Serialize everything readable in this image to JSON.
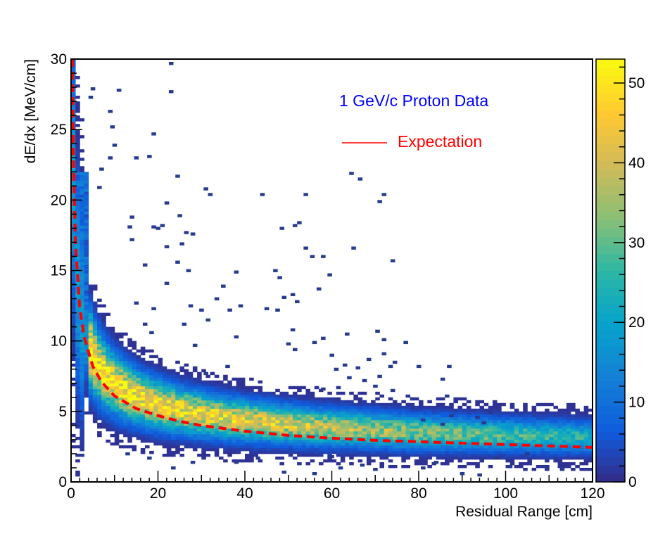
{
  "chart_data": {
    "type": "heatmap",
    "title": "",
    "xlabel": "Residual Range [cm]",
    "ylabel": "dE/dx [MeV/cm]",
    "xlim": [
      0,
      120
    ],
    "ylim": [
      0,
      30
    ],
    "x_ticks": [
      0,
      20,
      40,
      60,
      80,
      100,
      120
    ],
    "y_ticks": [
      0,
      5,
      10,
      15,
      20,
      25,
      30
    ],
    "colorbar": {
      "range": [
        0,
        53
      ],
      "ticks": [
        0,
        10,
        20,
        30,
        40,
        50
      ]
    },
    "annotations": [
      {
        "text": "1 GeV/c Proton Data",
        "color": "#0000ff"
      }
    ],
    "legend": [
      {
        "label": "Expectation",
        "color": "#ff0000",
        "style": "line"
      }
    ],
    "band": {
      "description": "dense population following dE/dx = 15.5 * R^-0.42 + 1.1",
      "a": 15.5,
      "b": -0.42,
      "c": 1.1,
      "peak_count": 53
    },
    "expectation_curve": {
      "color": "#ff0000",
      "style": "dashed",
      "x": [
        0.3,
        0.5,
        1,
        2,
        3,
        5,
        7,
        10,
        15,
        20,
        25,
        30,
        40,
        50,
        60,
        70,
        80,
        90,
        100,
        110,
        120
      ],
      "y": [
        30,
        23.5,
        17.0,
        12.4,
        10.3,
        8.2,
        7.1,
        6.1,
        5.2,
        4.7,
        4.3,
        4.0,
        3.6,
        3.3,
        3.1,
        2.95,
        2.85,
        2.75,
        2.65,
        2.55,
        2.45
      ]
    },
    "outliers": [
      [
        22.5,
        29.6
      ],
      [
        4.5,
        27.8
      ],
      [
        10.5,
        27.7
      ],
      [
        22.5,
        27.6
      ],
      [
        4.0,
        27.2
      ],
      [
        8.5,
        26.2
      ],
      [
        9.0,
        25.1
      ],
      [
        18.5,
        24.6
      ],
      [
        9.5,
        23.8
      ],
      [
        17.5,
        23.0
      ],
      [
        14.5,
        22.9
      ],
      [
        8.5,
        22.9
      ],
      [
        6.5,
        22.1
      ],
      [
        24.0,
        21.6
      ],
      [
        64.0,
        21.8
      ],
      [
        66.0,
        21.4
      ],
      [
        6.0,
        20.8
      ],
      [
        30.5,
        20.7
      ],
      [
        31.5,
        20.3
      ],
      [
        43.5,
        20.3
      ],
      [
        53.5,
        20.3
      ],
      [
        71.5,
        20.3
      ],
      [
        70.5,
        19.8
      ],
      [
        21.5,
        19.7
      ],
      [
        13.5,
        18.7
      ],
      [
        24.5,
        18.8
      ],
      [
        52.0,
        18.3
      ],
      [
        51.0,
        18.1
      ],
      [
        48.0,
        17.9
      ],
      [
        26.0,
        17.6
      ],
      [
        13.0,
        18.0
      ],
      [
        18.5,
        18.0
      ],
      [
        20.5,
        18.1
      ],
      [
        19.5,
        17.9
      ],
      [
        27.5,
        17.5
      ],
      [
        25.0,
        16.8
      ],
      [
        21.5,
        16.6
      ],
      [
        13.5,
        17.1
      ],
      [
        53.5,
        16.5
      ],
      [
        64.5,
        16.5
      ],
      [
        55.0,
        15.9
      ],
      [
        57.5,
        15.9
      ],
      [
        16.5,
        15.3
      ],
      [
        24.0,
        15.5
      ],
      [
        73.5,
        15.6
      ],
      [
        46.5,
        14.9
      ],
      [
        59.0,
        14.6
      ],
      [
        37.5,
        14.8
      ],
      [
        47.5,
        14.4
      ],
      [
        26.5,
        14.9
      ],
      [
        21.5,
        14.0
      ],
      [
        34.5,
        13.8
      ],
      [
        50.5,
        13.2
      ],
      [
        48.5,
        13.0
      ],
      [
        56.5,
        13.6
      ],
      [
        33.0,
        12.9
      ],
      [
        27.0,
        12.4
      ],
      [
        38.5,
        12.4
      ],
      [
        44.5,
        12.2
      ],
      [
        36.0,
        12.1
      ],
      [
        51.5,
        12.7
      ],
      [
        47.0,
        12.1
      ],
      [
        14.5,
        12.6
      ],
      [
        18.5,
        12.2
      ],
      [
        29.5,
        12.1
      ],
      [
        31.0,
        11.4
      ],
      [
        25.5,
        11.1
      ],
      [
        18.0,
        10.5
      ],
      [
        16.5,
        11.1
      ],
      [
        50.5,
        10.7
      ],
      [
        70.0,
        10.6
      ],
      [
        57.5,
        10.1
      ],
      [
        37.5,
        10.2
      ],
      [
        63.0,
        10.4
      ],
      [
        71.5,
        10.0
      ],
      [
        76.5,
        9.8
      ],
      [
        49.5,
        9.7
      ],
      [
        55.5,
        9.8
      ],
      [
        51.0,
        9.3
      ],
      [
        28.0,
        9.6
      ],
      [
        71.5,
        9.0
      ],
      [
        68.0,
        8.6
      ],
      [
        62.5,
        8.2
      ],
      [
        74.0,
        8.4
      ],
      [
        59.5,
        8.9
      ],
      [
        65.5,
        8.0
      ],
      [
        35.5,
        8.1
      ],
      [
        30.5,
        7.6
      ],
      [
        79.5,
        8.1
      ],
      [
        86.5,
        8.1
      ],
      [
        73.0,
        8.1
      ],
      [
        60.5,
        7.9
      ],
      [
        70.5,
        7.4
      ],
      [
        63.5,
        7.3
      ],
      [
        67.0,
        7.1
      ],
      [
        85.0,
        7.2
      ],
      [
        61.0,
        6.6
      ],
      [
        69.5,
        6.7
      ],
      [
        73.5,
        6.4
      ],
      [
        86.0,
        6.0
      ],
      [
        78.0,
        5.8
      ],
      [
        57.5,
        6.5
      ],
      [
        87.0,
        4.6
      ],
      [
        93.0,
        4.5
      ],
      [
        96.0,
        4.8
      ],
      [
        94.5,
        4.1
      ],
      [
        80.5,
        4.3
      ],
      [
        85.0,
        4.0
      ],
      [
        94.0,
        1.5
      ],
      [
        97.5,
        1.6
      ],
      [
        100.5,
        1.0
      ],
      [
        104.5,
        1.9
      ],
      [
        108.5,
        1.0
      ],
      [
        112.5,
        0.8
      ],
      [
        89.5,
        0.5
      ],
      [
        93.5,
        0.4
      ],
      [
        80.5,
        0.9
      ],
      [
        69.5,
        0.8
      ],
      [
        61.5,
        0.9
      ],
      [
        55.5,
        0.5
      ],
      [
        52.0,
        1.2
      ],
      [
        48.5,
        0.6
      ],
      [
        42.5,
        1.6
      ],
      [
        37.5,
        1.3
      ],
      [
        23.0,
        0.9
      ],
      [
        12.5,
        1.9
      ],
      [
        17.5,
        1.6
      ],
      [
        27.5,
        1.3
      ],
      [
        59.5,
        1.7
      ],
      [
        66.5,
        1.1
      ],
      [
        72.5,
        1.8
      ],
      [
        83.5,
        1.3
      ]
    ]
  }
}
